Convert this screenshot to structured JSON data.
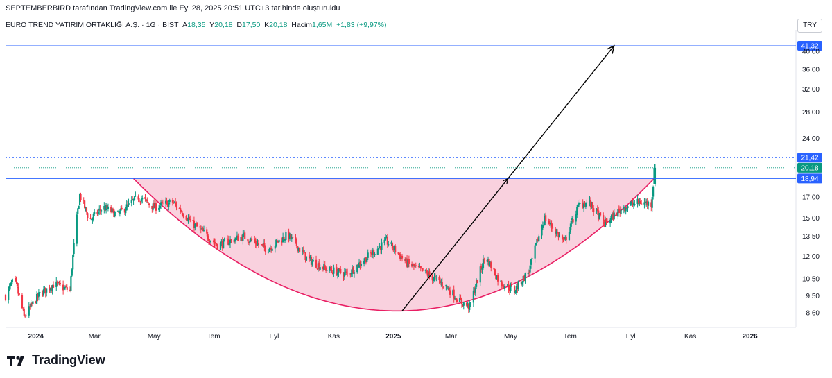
{
  "header": {
    "attribution": "SEPTEMBERBIRD tarafından TradingView.com ile Eyl 28, 2025 20:51 UTC+3 tarihinde oluşturuldu"
  },
  "symbol": {
    "name": "EURO TREND YATIRIM ORTAKLIĞI A.Ş.",
    "interval": "1G",
    "exchange": "BIST",
    "a_label": "A",
    "a_value": "18,35",
    "y_label": "Y",
    "y_value": "20,18",
    "d_label": "D",
    "d_value": "17,50",
    "k_label": "K",
    "k_value": "20,18",
    "vol_label": "Hacim",
    "vol_value": "1,65M",
    "change": "+1,83 (+9,97%)"
  },
  "currency": "TRY",
  "brand": {
    "name": "TradingView"
  },
  "colors": {
    "up": "#089981",
    "down": "#f23645",
    "level": "#2962ff",
    "cup_fill": "#f8c9d8",
    "cup_line": "#e91e63",
    "arrow": "#000000"
  },
  "chart_data": {
    "type": "candlestick",
    "scale": "log",
    "y_ticks": [
      "40,00",
      "36,00",
      "32,00",
      "28,00",
      "24,00",
      "17,00",
      "15,00",
      "13,50",
      "12,00",
      "10,50",
      "9,50",
      "8,60"
    ],
    "y_tick_values": [
      40,
      36,
      32,
      28,
      24,
      17,
      15,
      13.5,
      12,
      10.5,
      9.5,
      8.6
    ],
    "x_ticks": [
      "2024",
      "Mar",
      "May",
      "Tem",
      "Eyl",
      "Kas",
      "2025",
      "Mar",
      "May",
      "Tem",
      "Eyl",
      "Kas",
      "2026"
    ],
    "ylim": [
      7.9,
      45
    ],
    "price_levels": [
      {
        "label": "41,32",
        "value": 41.32,
        "style": "solid"
      },
      {
        "label": "21,42",
        "value": 21.42,
        "style": "dotted"
      },
      {
        "label": "20,18",
        "value": 20.18,
        "style": "last-price"
      },
      {
        "label": "18,94",
        "value": 18.94,
        "style": "solid"
      }
    ],
    "series_anchors": {
      "dates": [
        "2023-12-01",
        "2023-12-10",
        "2023-12-20",
        "2024-01-05",
        "2024-01-20",
        "2024-02-05",
        "2024-02-15",
        "2024-02-25",
        "2024-03-10",
        "2024-03-25",
        "2024-04-15",
        "2024-05-01",
        "2024-05-20",
        "2024-06-10",
        "2024-07-05",
        "2024-08-01",
        "2024-08-25",
        "2024-09-15",
        "2024-10-05",
        "2024-10-25",
        "2024-11-15",
        "2024-12-10",
        "2024-12-25",
        "2025-01-15",
        "2025-02-05",
        "2025-02-25",
        "2025-03-10",
        "2025-03-20",
        "2025-04-05",
        "2025-04-20",
        "2025-05-05",
        "2025-05-20",
        "2025-06-05",
        "2025-06-25",
        "2025-07-10",
        "2025-07-20",
        "2025-08-05",
        "2025-08-25",
        "2025-09-10",
        "2025-09-22",
        "2025-09-26"
      ],
      "close": [
        9.5,
        10.5,
        8.4,
        9.6,
        10.2,
        9.8,
        17.2,
        14.8,
        16.0,
        15.3,
        17.0,
        16.0,
        16.5,
        14.5,
        12.8,
        13.5,
        12.5,
        13.6,
        11.8,
        11.1,
        10.8,
        12.2,
        13.1,
        11.5,
        10.8,
        10.0,
        9.2,
        8.9,
        12.0,
        10.3,
        9.8,
        11.0,
        15.0,
        13.0,
        16.2,
        16.5,
        14.5,
        16.0,
        16.5,
        16.3,
        20.18
      ]
    },
    "last_candle": {
      "open": 18.35,
      "high": 20.18,
      "low": 17.5,
      "close": 20.18,
      "volume": "1,65M"
    },
    "annotations": {
      "cup": {
        "left": [
          "2024-04-10",
          18.94
        ],
        "bottom": [
          "2025-01-05",
          8.7
        ],
        "right": [
          "2025-09-25",
          18.94
        ]
      },
      "arrow": {
        "from": [
          "2025-01-10",
          8.7
        ],
        "to": [
          "2025-08-15",
          41.32
        ]
      }
    }
  }
}
